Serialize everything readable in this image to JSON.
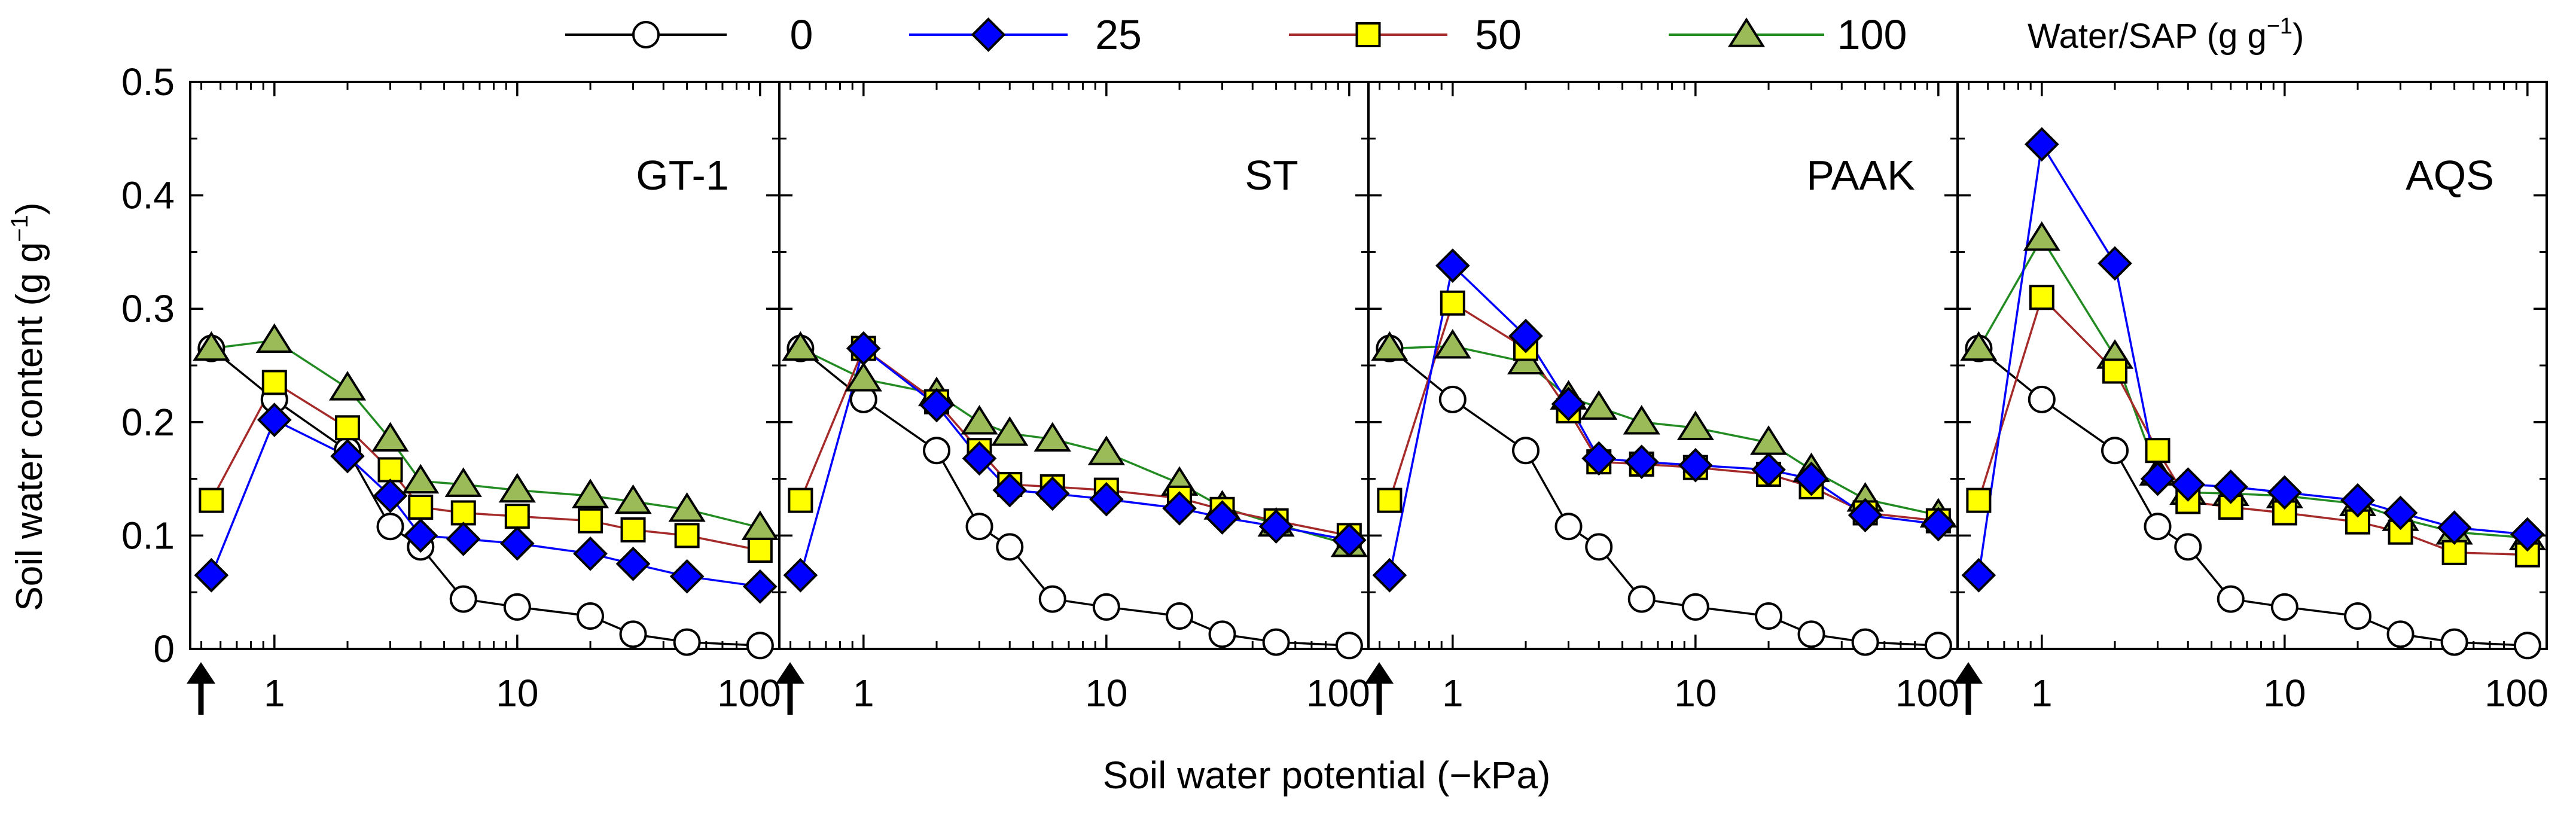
{
  "chart_data": {
    "type": "line",
    "ylabel_main": "Soil water content",
    "ylabel_unit": "(g g",
    "ylabel_unit_exp": "−1",
    "ylabel_unit_close": ")",
    "xlabel": "Soil water potential  (−kPa)",
    "xscale": "log",
    "xlim": [
      0.45,
      120
    ],
    "ylim": [
      0,
      0.5
    ],
    "yticks": [
      "0",
      "0.1",
      "0.2",
      "0.3",
      "0.4",
      "0.5"
    ],
    "xticks": [
      {
        "value": 1,
        "label": "1"
      },
      {
        "value": 10,
        "label": "10"
      },
      {
        "value": 100,
        "label": "100"
      }
    ],
    "arrow_marker": "↑ at zero potential (saturation)",
    "x": [
      0.55,
      1,
      2,
      3,
      4,
      6,
      10,
      20,
      30,
      50,
      100
    ],
    "legend": {
      "title": "Water/SAP (g g",
      "title_exp": "−1",
      "title_close": ")",
      "entries": [
        {
          "label": "0",
          "series_index": 0
        },
        {
          "label": "25",
          "series_index": 1
        },
        {
          "label": "50",
          "series_index": 2
        },
        {
          "label": "100",
          "series_index": 3
        }
      ]
    },
    "series_styles": [
      {
        "name": "0",
        "marker": "circle",
        "fill": "#ffffff",
        "line": "#000000"
      },
      {
        "name": "25",
        "marker": "diamond",
        "fill": "#0000ff",
        "line": "#0000ff"
      },
      {
        "name": "50",
        "marker": "square",
        "fill": "#ffff00",
        "line": "#a52a2a"
      },
      {
        "name": "100",
        "marker": "triangle",
        "fill": "#9bbb59",
        "line": "#228b22"
      }
    ],
    "panels": [
      {
        "title": "GT-1",
        "series": [
          {
            "name": "0",
            "values": [
              0.265,
              0.22,
              0.175,
              0.108,
              0.09,
              0.044,
              0.037,
              0.029,
              0.013,
              0.006,
              0.003
            ]
          },
          {
            "name": "25",
            "values": [
              0.065,
              0.202,
              0.17,
              0.135,
              0.1,
              0.097,
              0.093,
              0.084,
              0.075,
              0.064,
              0.055
            ]
          },
          {
            "name": "50",
            "values": [
              0.131,
              0.235,
              0.195,
              0.158,
              0.125,
              0.12,
              0.117,
              0.113,
              0.105,
              0.1,
              0.087
            ]
          },
          {
            "name": "100",
            "values": [
              0.265,
              0.272,
              0.23,
              0.185,
              0.148,
              0.145,
              0.14,
              0.135,
              0.13,
              0.123,
              0.107
            ]
          }
        ]
      },
      {
        "title": "ST",
        "series": [
          {
            "name": "0",
            "values": [
              0.265,
              0.22,
              0.175,
              0.108,
              0.09,
              0.044,
              0.037,
              0.029,
              0.013,
              0.006,
              0.003
            ]
          },
          {
            "name": "25",
            "values": [
              0.065,
              0.265,
              0.215,
              0.168,
              0.14,
              0.137,
              0.132,
              0.124,
              0.116,
              0.108,
              0.096
            ]
          },
          {
            "name": "50",
            "values": [
              0.131,
              0.265,
              0.218,
              0.175,
              0.145,
              0.143,
              0.14,
              0.133,
              0.123,
              0.113,
              0.1
            ]
          },
          {
            "name": "100",
            "values": [
              0.265,
              0.238,
              0.225,
              0.2,
              0.19,
              0.185,
              0.173,
              0.146,
              0.125,
              0.11,
              0.092
            ]
          }
        ]
      },
      {
        "title": "PAAK",
        "series": [
          {
            "name": "0",
            "values": [
              0.265,
              0.22,
              0.175,
              0.108,
              0.09,
              0.044,
              0.037,
              0.029,
              0.013,
              0.006,
              0.003
            ]
          },
          {
            "name": "25",
            "values": [
              0.065,
              0.338,
              0.276,
              0.216,
              0.168,
              0.165,
              0.162,
              0.158,
              0.15,
              0.118,
              0.11
            ]
          },
          {
            "name": "50",
            "values": [
              0.131,
              0.305,
              0.265,
              0.21,
              0.165,
              0.163,
              0.16,
              0.154,
              0.143,
              0.12,
              0.113
            ]
          },
          {
            "name": "100",
            "values": [
              0.265,
              0.267,
              0.253,
              0.222,
              0.213,
              0.2,
              0.195,
              0.182,
              0.158,
              0.132,
              0.118
            ]
          }
        ]
      },
      {
        "title": "AQS",
        "series": [
          {
            "name": "0",
            "values": [
              0.265,
              0.22,
              0.175,
              0.108,
              0.09,
              0.044,
              0.037,
              0.029,
              0.013,
              0.006,
              0.003
            ]
          },
          {
            "name": "25",
            "values": [
              0.065,
              0.445,
              0.34,
              0.15,
              0.145,
              0.143,
              0.138,
              0.131,
              0.12,
              0.107,
              0.101
            ]
          },
          {
            "name": "50",
            "values": [
              0.131,
              0.31,
              0.245,
              0.175,
              0.13,
              0.125,
              0.12,
              0.112,
              0.103,
              0.085,
              0.083
            ]
          },
          {
            "name": "100",
            "values": [
              0.265,
              0.362,
              0.258,
              0.155,
              0.138,
              0.137,
              0.135,
              0.128,
              0.115,
              0.103,
              0.098
            ]
          }
        ]
      }
    ]
  }
}
